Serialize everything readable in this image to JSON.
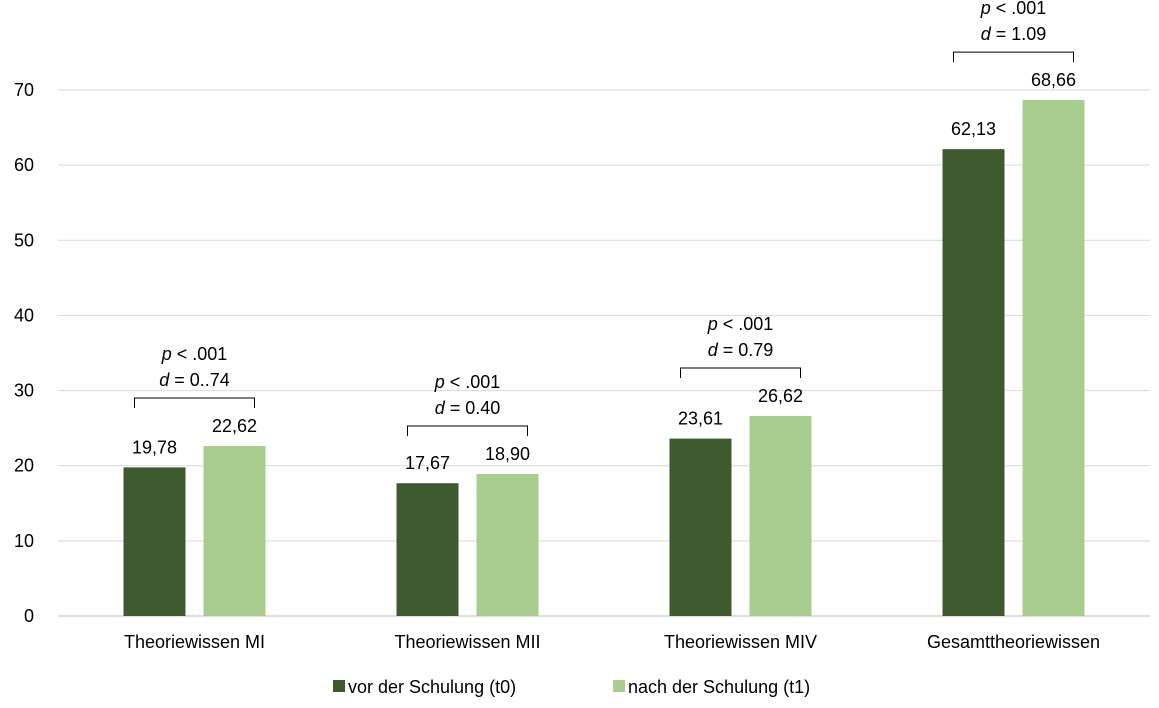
{
  "chart_data": {
    "type": "bar",
    "categories": [
      "Theoriewissen MI",
      "Theoriewissen MII",
      "Theoriewissen MIV",
      "Gesamttheoriewissen"
    ],
    "series": [
      {
        "name": "vor der Schulung (t0)",
        "color": "#3f5a2e",
        "values": [
          19.78,
          17.67,
          23.61,
          62.13
        ],
        "labels": [
          "19,78",
          "17,67",
          "23,61",
          "62,13"
        ]
      },
      {
        "name": "nach der Schulung (t1)",
        "color": "#a9cd8f",
        "values": [
          22.62,
          18.9,
          26.62,
          68.66
        ],
        "labels": [
          "22,62",
          "18,90",
          "26,62",
          "68,66"
        ]
      }
    ],
    "ylim": [
      0,
      70
    ],
    "yticks": [
      0,
      10,
      20,
      30,
      40,
      50,
      60,
      70
    ],
    "grid": true,
    "legend": "bottom-center",
    "annotations": [
      {
        "p": "p",
        "p_rest": " < .001",
        "d": "d",
        "d_rest": " = 0..74"
      },
      {
        "p": "p",
        "p_rest": " < .001",
        "d": "d",
        "d_rest": " = 0.40"
      },
      {
        "p": "p",
        "p_rest": " < .001",
        "d": "d",
        "d_rest": " = 0.79"
      },
      {
        "p": "p",
        "p_rest": " < .001",
        "d": "d",
        "d_rest": " = 1.09"
      }
    ]
  }
}
